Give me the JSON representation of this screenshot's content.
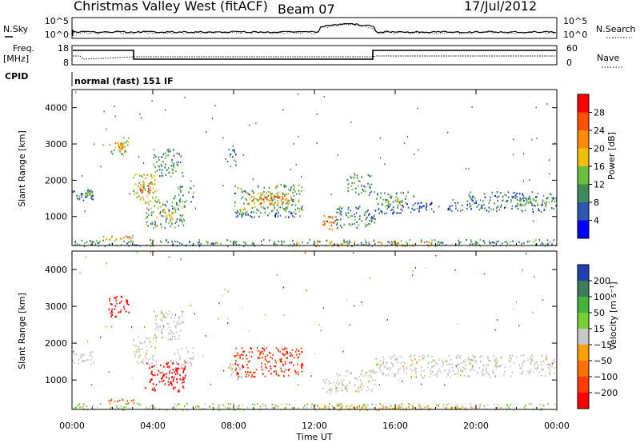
{
  "header": {
    "title": "Christmas Valley West (fitACF)",
    "beam": "Beam 07",
    "date": "17/Jul/2012"
  },
  "noise_panel": {
    "left_label": "N.Sky",
    "right_label": "N.Search",
    "y_ticks_left": [
      "10^5",
      "10^0"
    ],
    "y_ticks_right": [
      "10^5",
      "10^0"
    ]
  },
  "freq_panel": {
    "left_label_line1": "Freq.",
    "left_label_line2": "[MHz]",
    "right_label": "Nave",
    "y_ticks_left": [
      "18",
      "8"
    ],
    "y_ticks_right": [
      "60",
      "0"
    ]
  },
  "cpid_panel": {
    "label": "CPID",
    "mode_text": "normal (fast) 151 IF"
  },
  "colors": {
    "power_scale": [
      "#0000ff",
      "#2e57b0",
      "#3e8a5a",
      "#6ac03c",
      "#f3c000",
      "#ff8c00",
      "#ff5000",
      "#ff0000"
    ],
    "velocity_scale": [
      "#2040b0",
      "#3c7c5a",
      "#44b23c",
      "#78d030",
      "#c8c8c8",
      "#ffa000",
      "#ff7000",
      "#ff3c00",
      "#ff0000"
    ]
  },
  "chart_data": [
    {
      "type": "heatmap",
      "name": "power",
      "ylabel": "Slant Range [km]",
      "xlabel": "",
      "x_ticks": [
        "00:00",
        "04:00",
        "08:00",
        "12:00",
        "16:00",
        "20:00",
        "00:00"
      ],
      "y_ticks": [
        "1000",
        "2000",
        "3000",
        "4000"
      ],
      "ylim": [
        200,
        4500
      ],
      "colorbar_label": "Power [dB]",
      "colorbar_ticks": [
        "28",
        "24",
        "20",
        "16",
        "12",
        "8",
        "4"
      ],
      "colorbar_range": [
        0,
        32
      ],
      "patches": [
        {
          "t0": 0.0,
          "t1": 1.1,
          "r0": 1450,
          "r1": 1800,
          "v": 8
        },
        {
          "t0": 0.6,
          "t1": 1.0,
          "r0": 1600,
          "r1": 1750,
          "v": 14
        },
        {
          "t0": 1.8,
          "t1": 2.8,
          "r0": 2700,
          "r1": 3200,
          "v": 14
        },
        {
          "t0": 2.1,
          "t1": 2.6,
          "r0": 2850,
          "r1": 3050,
          "v": 22
        },
        {
          "t0": 3.0,
          "t1": 4.2,
          "r0": 1400,
          "r1": 2200,
          "v": 16
        },
        {
          "t0": 3.3,
          "t1": 3.9,
          "r0": 1650,
          "r1": 1950,
          "v": 26
        },
        {
          "t0": 4.0,
          "t1": 5.5,
          "r0": 2100,
          "r1": 2900,
          "v": 10
        },
        {
          "t0": 3.6,
          "t1": 5.6,
          "r0": 700,
          "r1": 1500,
          "v": 12
        },
        {
          "t0": 4.4,
          "t1": 5.0,
          "r0": 950,
          "r1": 1200,
          "v": 20
        },
        {
          "t0": 5.0,
          "t1": 6.0,
          "r0": 1400,
          "r1": 1900,
          "v": 10
        },
        {
          "t0": 7.6,
          "t1": 8.1,
          "r0": 2400,
          "r1": 2900,
          "v": 8
        },
        {
          "t0": 8.0,
          "t1": 11.4,
          "r0": 1100,
          "r1": 1900,
          "v": 12
        },
        {
          "t0": 8.7,
          "t1": 11.0,
          "r0": 1350,
          "r1": 1700,
          "v": 20
        },
        {
          "t0": 9.4,
          "t1": 10.6,
          "r0": 1450,
          "r1": 1600,
          "v": 26
        },
        {
          "t0": 8.0,
          "t1": 11.4,
          "r0": 1000,
          "r1": 1150,
          "v": 6
        },
        {
          "t0": 12.4,
          "t1": 13.2,
          "r0": 650,
          "r1": 1050,
          "v": 24
        },
        {
          "t0": 13.0,
          "t1": 15.0,
          "r0": 700,
          "r1": 1300,
          "v": 10
        },
        {
          "t0": 13.6,
          "t1": 14.8,
          "r0": 1600,
          "r1": 2200,
          "v": 10
        },
        {
          "t0": 15.0,
          "t1": 17.0,
          "r0": 1100,
          "r1": 1700,
          "v": 8
        },
        {
          "t0": 15.5,
          "t1": 16.4,
          "r0": 1300,
          "r1": 1500,
          "v": 16
        },
        {
          "t0": 17.0,
          "t1": 19.5,
          "r0": 1150,
          "r1": 1400,
          "v": 6
        },
        {
          "t0": 19.5,
          "t1": 24.0,
          "r0": 1150,
          "r1": 1700,
          "v": 8
        },
        {
          "t0": 22.0,
          "t1": 24.0,
          "r0": 1300,
          "r1": 1550,
          "v": 12
        },
        {
          "t0": 0.0,
          "t1": 24.0,
          "r0": 200,
          "r1": 380,
          "v": 10
        },
        {
          "t0": 1.5,
          "t1": 3.0,
          "r0": 380,
          "r1": 500,
          "v": 20
        },
        {
          "t0": 11.0,
          "t1": 18.0,
          "r0": 200,
          "r1": 320,
          "v": 20
        }
      ]
    },
    {
      "type": "heatmap",
      "name": "velocity",
      "ylabel": "Slant Range [km]",
      "xlabel": "Time UT",
      "x_ticks": [
        "00:00",
        "04:00",
        "08:00",
        "12:00",
        "16:00",
        "20:00",
        "00:00"
      ],
      "y_ticks": [
        "1000",
        "2000",
        "3000",
        "4000"
      ],
      "ylim": [
        200,
        4500
      ],
      "colorbar_label": "Velocity [m s⁻¹]",
      "colorbar_ticks": [
        "200",
        "100",
        "50",
        "15",
        "−15",
        "−50",
        "−100",
        "−200"
      ],
      "colorbar_range": [
        -250,
        250
      ],
      "patches": [
        {
          "t0": 0.0,
          "t1": 1.1,
          "r0": 1450,
          "r1": 1800,
          "v": 0
        },
        {
          "t0": 1.8,
          "t1": 2.8,
          "r0": 2700,
          "r1": 3300,
          "v": -220
        },
        {
          "t0": 3.0,
          "t1": 4.2,
          "r0": 1400,
          "r1": 2200,
          "v": 0
        },
        {
          "t0": 4.0,
          "t1": 5.5,
          "r0": 2100,
          "r1": 2900,
          "v": 0
        },
        {
          "t0": 3.6,
          "t1": 5.6,
          "r0": 700,
          "r1": 1500,
          "v": -220
        },
        {
          "t0": 5.0,
          "t1": 6.0,
          "r0": 1400,
          "r1": 1900,
          "v": 0
        },
        {
          "t0": 1.8,
          "t1": 3.2,
          "r0": 380,
          "r1": 500,
          "v": -150
        },
        {
          "t0": 8.0,
          "t1": 11.4,
          "r0": 1100,
          "r1": 1900,
          "v": -180
        },
        {
          "t0": 7.7,
          "t1": 8.4,
          "r0": 1000,
          "r1": 1500,
          "v": 0
        },
        {
          "t0": 12.4,
          "t1": 13.2,
          "r0": 650,
          "r1": 1050,
          "v": 0
        },
        {
          "t0": 13.0,
          "t1": 15.0,
          "r0": 700,
          "r1": 1300,
          "v": 0
        },
        {
          "t0": 15.0,
          "t1": 17.0,
          "r0": 1100,
          "r1": 1700,
          "v": 0
        },
        {
          "t0": 17.0,
          "t1": 24.0,
          "r0": 1100,
          "r1": 1700,
          "v": 0
        },
        {
          "t0": 0.0,
          "t1": 24.0,
          "r0": 200,
          "r1": 380,
          "v": 30
        },
        {
          "t0": 12.0,
          "t1": 20.0,
          "r0": 200,
          "r1": 330,
          "v": -60
        }
      ]
    }
  ]
}
